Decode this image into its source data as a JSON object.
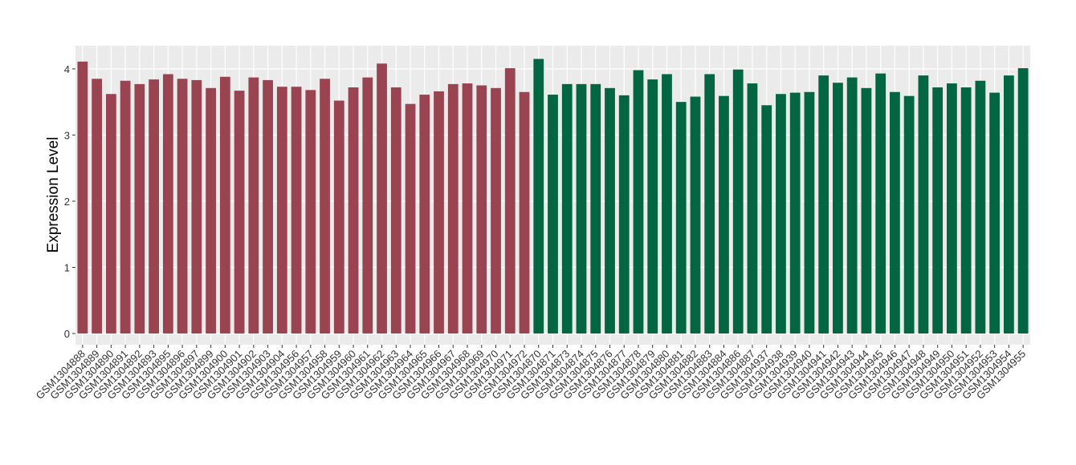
{
  "chart_data": {
    "type": "bar",
    "y_label": "Expression Level",
    "categories": [
      "GSM1304888",
      "GSM1304889",
      "GSM1304890",
      "GSM1304891",
      "GSM1304892",
      "GSM1304893",
      "GSM1304895",
      "GSM1304896",
      "GSM1304897",
      "GSM1304899",
      "GSM1304900",
      "GSM1304901",
      "GSM1304902",
      "GSM1304903",
      "GSM1304904",
      "GSM1304956",
      "GSM1304957",
      "GSM1304958",
      "GSM1304959",
      "GSM1304960",
      "GSM1304961",
      "GSM1304962",
      "GSM1304963",
      "GSM1304964",
      "GSM1304965",
      "GSM1304966",
      "GSM1304967",
      "GSM1304968",
      "GSM1304969",
      "GSM1304970",
      "GSM1304971",
      "GSM1304972",
      "GSM1304870",
      "GSM1304871",
      "GSM1304873",
      "GSM1304874",
      "GSM1304875",
      "GSM1304876",
      "GSM1304877",
      "GSM1304878",
      "GSM1304879",
      "GSM1304880",
      "GSM1304881",
      "GSM1304882",
      "GSM1304883",
      "GSM1304884",
      "GSM1304886",
      "GSM1304887",
      "GSM1304937",
      "GSM1304938",
      "GSM1304939",
      "GSM1304940",
      "GSM1304941",
      "GSM1304942",
      "GSM1304943",
      "GSM1304944",
      "GSM1304945",
      "GSM1304946",
      "GSM1304947",
      "GSM1304948",
      "GSM1304949",
      "GSM1304950",
      "GSM1304951",
      "GSM1304952",
      "GSM1304953",
      "GSM1304954",
      "GSM1304955"
    ],
    "series": [
      {
        "color": "#9b4451",
        "values": [
          4.11,
          3.85,
          3.62,
          3.82,
          3.77,
          3.84,
          3.92,
          3.85,
          3.83,
          3.71,
          3.88,
          3.67,
          3.87,
          3.83,
          3.73,
          3.73,
          3.68,
          3.85,
          3.52,
          3.72,
          3.87,
          4.08,
          3.72,
          3.47,
          3.61,
          3.66,
          3.77,
          3.78,
          3.75,
          3.71,
          4.01,
          3.65,
          null,
          null,
          null,
          null,
          null,
          null,
          null,
          null,
          null,
          null,
          null,
          null,
          null,
          null,
          null,
          null,
          null,
          null,
          null,
          null,
          null,
          null,
          null,
          null,
          null,
          null,
          null,
          null,
          null,
          null,
          null,
          null,
          null,
          null,
          null
        ]
      },
      {
        "color": "#036642",
        "values": [
          null,
          null,
          null,
          null,
          null,
          null,
          null,
          null,
          null,
          null,
          null,
          null,
          null,
          null,
          null,
          null,
          null,
          null,
          null,
          null,
          null,
          null,
          null,
          null,
          null,
          null,
          null,
          null,
          null,
          null,
          null,
          null,
          4.15,
          3.61,
          3.77,
          3.77,
          3.77,
          3.71,
          3.6,
          3.98,
          3.84,
          3.92,
          3.5,
          3.58,
          3.92,
          3.59,
          3.99,
          3.78,
          3.45,
          3.62,
          3.64,
          3.65,
          3.9,
          3.79,
          3.87,
          3.71,
          3.93,
          3.65,
          3.59,
          3.9,
          3.72,
          3.78,
          3.72,
          3.82,
          3.64,
          3.9,
          4.01
        ]
      }
    ],
    "ylim": [
      -0.17,
      4.35
    ],
    "yticks": [
      0,
      1,
      2,
      3,
      4
    ],
    "grid": true
  }
}
